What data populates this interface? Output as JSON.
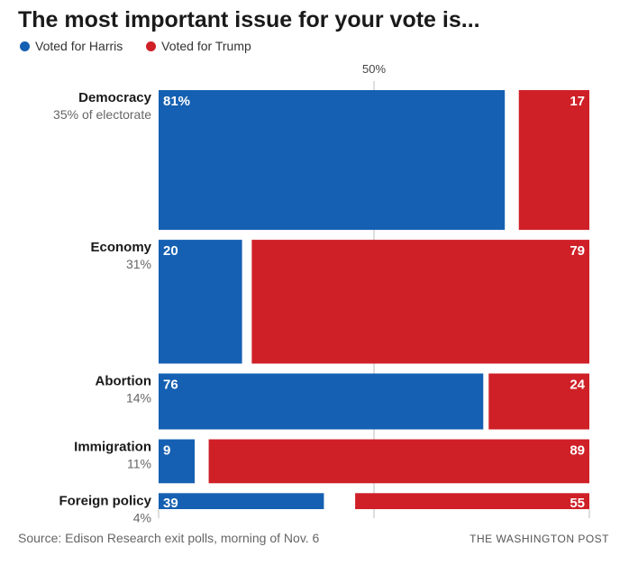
{
  "title": "The most important issue for your vote is...",
  "legend": [
    {
      "label": "Voted for Harris",
      "color": "#1560b2"
    },
    {
      "label": "Voted for Trump",
      "color": "#cf2027"
    }
  ],
  "footer": {
    "source": "Source: Edison Research exit polls, morning of Nov. 6",
    "brand": "THE WASHINGTON POST"
  },
  "chart_data": {
    "type": "bar",
    "subtype": "marimekko",
    "axis_label_50": "50%",
    "categories": [
      "Democracy",
      "Economy",
      "Abortion",
      "Immigration",
      "Foreign policy"
    ],
    "share_labels": [
      "35% of electorate",
      "31%",
      "14%",
      "11%",
      "4%"
    ],
    "share_of_electorate": [
      35,
      31,
      14,
      11,
      4
    ],
    "series": [
      {
        "name": "Voted for Harris",
        "color": "#1560b2",
        "values": [
          81,
          20,
          76,
          9,
          39
        ],
        "labels": [
          "81%",
          "20",
          "76",
          "9",
          "39"
        ]
      },
      {
        "name": "Voted for Trump",
        "color": "#cf2027",
        "values": [
          17,
          79,
          24,
          89,
          55
        ],
        "labels": [
          "17",
          "79",
          "24",
          "89",
          "55"
        ]
      }
    ],
    "xlim": [
      0,
      100
    ]
  }
}
